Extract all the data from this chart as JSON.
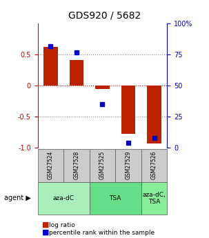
{
  "title": "GDS920 / 5682",
  "samples": [
    "GSM27524",
    "GSM27528",
    "GSM27525",
    "GSM27529",
    "GSM27526"
  ],
  "log_ratios": [
    0.63,
    0.42,
    -0.05,
    -0.78,
    -0.93
  ],
  "percentile_ranks": [
    0.82,
    0.77,
    0.35,
    0.04,
    0.08
  ],
  "bar_color": "#BB2200",
  "dot_color": "#0000CC",
  "groups": [
    {
      "label": "aza-dC",
      "samples": [
        0,
        1
      ],
      "color": "#AAEEBB"
    },
    {
      "label": "TSA",
      "samples": [
        2,
        3
      ],
      "color": "#66DD88"
    },
    {
      "label": "aza-dC,\nTSA",
      "samples": [
        4
      ],
      "color": "#88EE99"
    }
  ],
  "ylim": [
    -1.0,
    1.0
  ],
  "yticks_left": [
    -1.0,
    -0.5,
    0.0,
    0.5
  ],
  "yticks_right": [
    0,
    25,
    50,
    75,
    100
  ],
  "hlines": [
    -0.5,
    0.0,
    0.5
  ],
  "background_color": "#ffffff"
}
